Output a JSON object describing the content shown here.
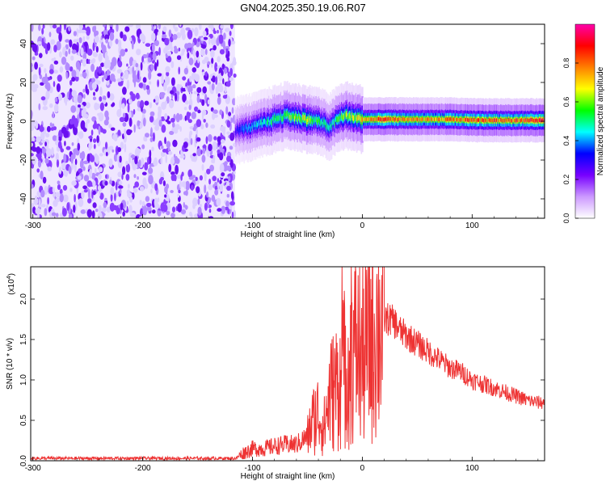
{
  "title": "GN04.2025.350.19.06.R07",
  "chart_data": [
    {
      "type": "heatmap",
      "xlabel": "Height of straight line (km)",
      "ylabel": "Frequency (Hz)",
      "xlim": [
        -302,
        166
      ],
      "ylim": [
        -50,
        50
      ],
      "xticks": [
        -300,
        -200,
        -100,
        0,
        100
      ],
      "yticks": [
        -40,
        -20,
        0,
        20,
        40
      ],
      "noise_region_x": [
        -302,
        -116
      ],
      "colorbar": {
        "label": "Normalized spectral amplitude",
        "ticks": [
          0.0,
          0.2,
          0.4,
          0.6,
          0.8
        ],
        "range": [
          0,
          1
        ],
        "colors": [
          "#ffffff",
          "#cc99ff",
          "#7700ff",
          "#0000ff",
          "#00ffff",
          "#00ff00",
          "#ffff00",
          "#ff7f00",
          "#ff0000",
          "#ff00aa"
        ]
      },
      "signal_track": {
        "x": [
          -116,
          -110,
          -100,
          -90,
          -80,
          -70,
          -60,
          -50,
          -40,
          -30,
          -25,
          -20,
          -15,
          -10,
          0,
          20,
          40,
          60,
          80,
          100,
          120,
          140,
          166
        ],
        "center_freq": [
          -5,
          -4,
          -3,
          -1,
          1,
          3,
          2,
          1,
          0,
          -3,
          0,
          2,
          3,
          2,
          1,
          1,
          1,
          1,
          1,
          0.5,
          0.5,
          0.5,
          0.5
        ],
        "amplitude": [
          0.25,
          0.35,
          0.4,
          0.45,
          0.5,
          0.55,
          0.6,
          0.6,
          0.5,
          0.45,
          0.5,
          0.55,
          0.6,
          0.6,
          0.7,
          0.8,
          0.75,
          0.7,
          0.75,
          0.8,
          0.8,
          0.8,
          0.85
        ]
      }
    },
    {
      "type": "line",
      "xlabel": "Height of straight line (km)",
      "ylabel": "SNR (10 * v/v)",
      "multiplier_label": "(x10^4)",
      "multiplier_base": "(x10",
      "multiplier_exp": "4",
      "multiplier_close": ")",
      "xlim": [
        -302,
        166
      ],
      "ylim": [
        0,
        2.4
      ],
      "xticks": [
        -300,
        -200,
        -100,
        0,
        100
      ],
      "yticks": [
        0.0,
        0.5,
        1.0,
        1.5,
        2.0
      ],
      "series": [
        {
          "color": "#ee3333",
          "x": [
            -302,
            -250,
            -200,
            -150,
            -115,
            -108,
            -100,
            -90,
            -80,
            -70,
            -60,
            -50,
            -45,
            -40,
            -35,
            -30,
            -25,
            -20,
            -15,
            -10,
            -5,
            0,
            5,
            10,
            15,
            20,
            25,
            30,
            35,
            40,
            50,
            60,
            70,
            80,
            90,
            100,
            110,
            120,
            130,
            140,
            150,
            160,
            166
          ],
          "y": [
            0.03,
            0.03,
            0.03,
            0.03,
            0.03,
            0.1,
            0.15,
            0.15,
            0.18,
            0.2,
            0.2,
            0.3,
            0.5,
            0.6,
            0.4,
            0.8,
            0.9,
            1.0,
            1.2,
            1.3,
            1.4,
            1.3,
            1.4,
            1.6,
            1.7,
            1.75,
            1.75,
            1.7,
            1.6,
            1.55,
            1.45,
            1.35,
            1.25,
            1.15,
            1.1,
            1.0,
            0.95,
            0.9,
            0.85,
            0.8,
            0.75,
            0.72,
            0.72
          ]
        }
      ]
    }
  ]
}
